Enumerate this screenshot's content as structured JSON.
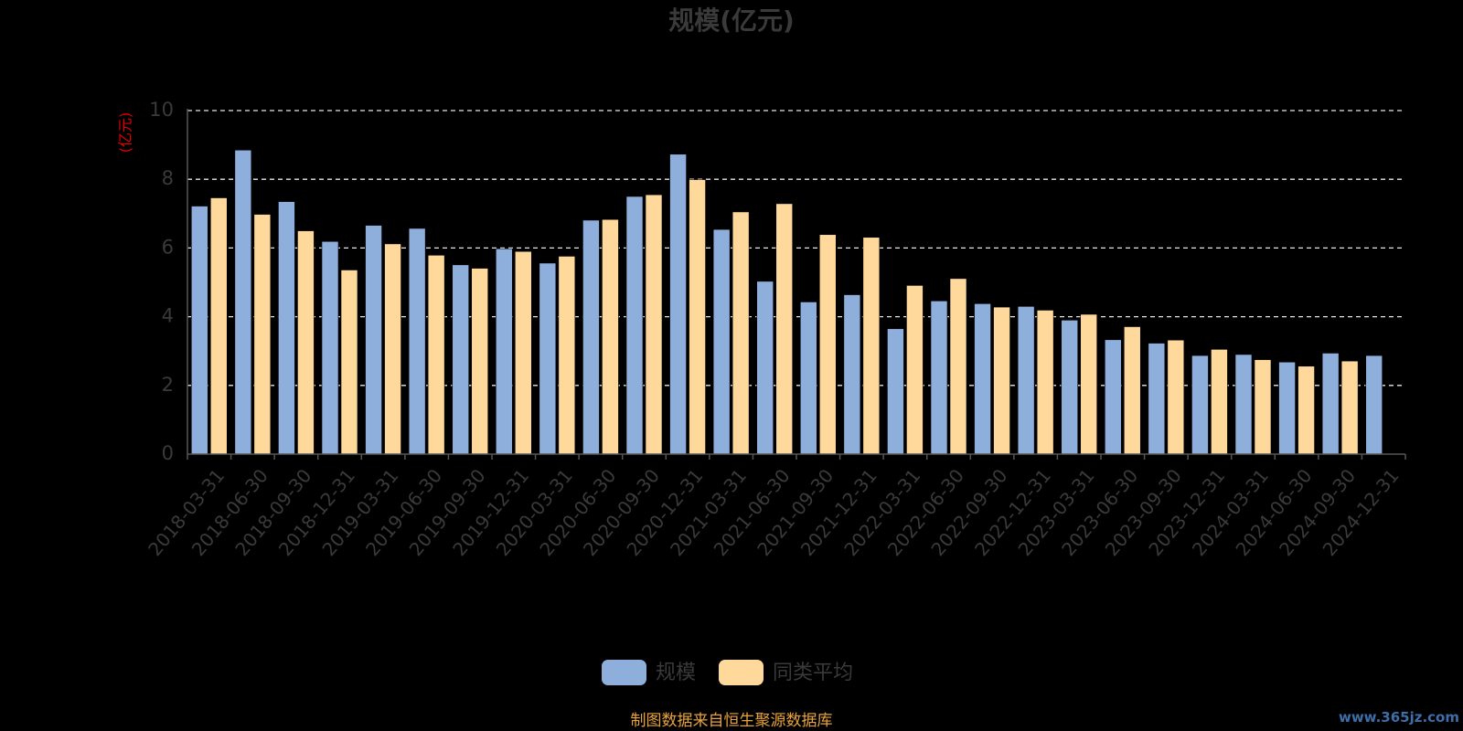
{
  "chart_data": {
    "type": "bar",
    "title": "规模(亿元)",
    "ylabel": "(亿元)",
    "xlabel": "",
    "ylim": [
      0,
      10
    ],
    "yticks": [
      0,
      2,
      4,
      6,
      8,
      10
    ],
    "grid": true,
    "legend_position": "bottom-center",
    "categories": [
      "2018-03-31",
      "2018-06-30",
      "2018-09-30",
      "2018-12-31",
      "2019-03-31",
      "2019-06-30",
      "2019-09-30",
      "2019-12-31",
      "2020-03-31",
      "2020-06-30",
      "2020-09-30",
      "2020-12-31",
      "2021-03-31",
      "2021-06-30",
      "2021-09-30",
      "2021-12-31",
      "2022-03-31",
      "2022-06-30",
      "2022-09-30",
      "2022-12-31",
      "2023-03-31",
      "2023-06-30",
      "2023-09-30",
      "2023-12-31",
      "2024-03-31",
      "2024-06-30",
      "2024-09-30",
      "2024-12-31"
    ],
    "series": [
      {
        "name": "规模",
        "color": "#8eaedc",
        "values": [
          7.22,
          8.85,
          7.35,
          6.19,
          6.66,
          6.57,
          5.51,
          5.98,
          5.56,
          6.81,
          7.5,
          8.73,
          6.54,
          5.03,
          4.43,
          4.64,
          3.65,
          4.46,
          4.38,
          4.3,
          3.9,
          3.33,
          3.23,
          2.87,
          2.9,
          2.68,
          2.94,
          2.87
        ]
      },
      {
        "name": "同类平均",
        "color": "#ffd99b",
        "values": [
          7.46,
          6.98,
          6.5,
          5.36,
          6.12,
          5.79,
          5.41,
          5.9,
          5.76,
          6.83,
          7.55,
          7.99,
          7.05,
          7.29,
          6.39,
          6.31,
          4.91,
          5.11,
          4.28,
          4.19,
          4.07,
          3.71,
          3.32,
          3.05,
          2.75,
          2.56,
          2.71,
          null
        ]
      }
    ]
  },
  "footer": {
    "source": "制图数据来自恒生聚源数据库",
    "watermark": "www.365jz.com"
  },
  "colors": {
    "background": "#000000",
    "axis_text": "#3a3a3a",
    "grid": "#e6e6e6",
    "axis_line": "#555555",
    "unit_label": "#e00000",
    "source_text": "#e8a33a",
    "watermark": "#3e6ea8"
  }
}
